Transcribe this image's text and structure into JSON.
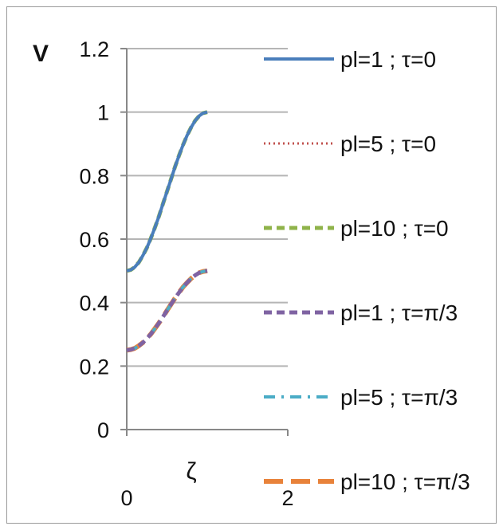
{
  "chart_data": {
    "type": "line",
    "ylabel": "V",
    "xlabel": "ζ",
    "xlim": [
      0,
      2
    ],
    "ylim": [
      0,
      1.2
    ],
    "x_ticks": [
      "0",
      "2"
    ],
    "y_ticks": [
      "0",
      "0.2",
      "0.4",
      "0.6",
      "0.8",
      "1",
      "1.2"
    ],
    "grid": "horizontal",
    "legend_position": "right",
    "x": [
      0,
      0.05,
      0.1,
      0.15,
      0.2,
      0.25,
      0.3,
      0.35,
      0.4,
      0.45,
      0.5,
      0.55,
      0.6,
      0.65,
      0.7,
      0.75,
      0.8,
      0.85,
      0.9,
      0.95,
      1.0
    ],
    "series": [
      {
        "name": "pl=1 ; τ=0",
        "color": "#4a7ebb",
        "dash": "solid",
        "values": [
          0.5,
          0.503,
          0.512,
          0.527,
          0.548,
          0.573,
          0.603,
          0.636,
          0.672,
          0.711,
          0.75,
          0.789,
          0.828,
          0.864,
          0.897,
          0.927,
          0.952,
          0.973,
          0.988,
          0.997,
          1.0
        ]
      },
      {
        "name": "pl=5 ; τ=0",
        "color": "#c0504d",
        "dash": "dotted",
        "values": [
          0.5,
          0.503,
          0.512,
          0.527,
          0.548,
          0.573,
          0.603,
          0.636,
          0.672,
          0.711,
          0.75,
          0.789,
          0.828,
          0.864,
          0.897,
          0.927,
          0.952,
          0.973,
          0.988,
          0.997,
          1.0
        ]
      },
      {
        "name": "pl=10 ; τ=0",
        "color": "#8fb34a",
        "dash": "dash",
        "values": [
          0.5,
          0.503,
          0.512,
          0.527,
          0.548,
          0.573,
          0.603,
          0.636,
          0.672,
          0.711,
          0.75,
          0.789,
          0.828,
          0.864,
          0.897,
          0.927,
          0.952,
          0.973,
          0.988,
          0.997,
          1.0
        ]
      },
      {
        "name": "pl=1 ; τ=π/3",
        "color": "#7f63a2",
        "dash": "dash",
        "values": [
          0.25,
          0.252,
          0.256,
          0.264,
          0.274,
          0.287,
          0.301,
          0.318,
          0.336,
          0.355,
          0.375,
          0.395,
          0.414,
          0.432,
          0.449,
          0.463,
          0.476,
          0.486,
          0.494,
          0.498,
          0.5
        ]
      },
      {
        "name": "pl=5 ; τ=π/3",
        "color": "#4bacc6",
        "dash": "dashdot",
        "values": [
          0.25,
          0.252,
          0.256,
          0.264,
          0.274,
          0.287,
          0.301,
          0.318,
          0.336,
          0.355,
          0.375,
          0.395,
          0.414,
          0.432,
          0.449,
          0.463,
          0.476,
          0.486,
          0.494,
          0.498,
          0.5
        ]
      },
      {
        "name": "pl=10 ; τ=π/3",
        "color": "#e8823a",
        "dash": "longdash",
        "values": [
          0.25,
          0.252,
          0.256,
          0.264,
          0.274,
          0.287,
          0.301,
          0.318,
          0.336,
          0.355,
          0.375,
          0.395,
          0.414,
          0.432,
          0.449,
          0.463,
          0.476,
          0.486,
          0.494,
          0.498,
          0.5
        ]
      }
    ]
  }
}
